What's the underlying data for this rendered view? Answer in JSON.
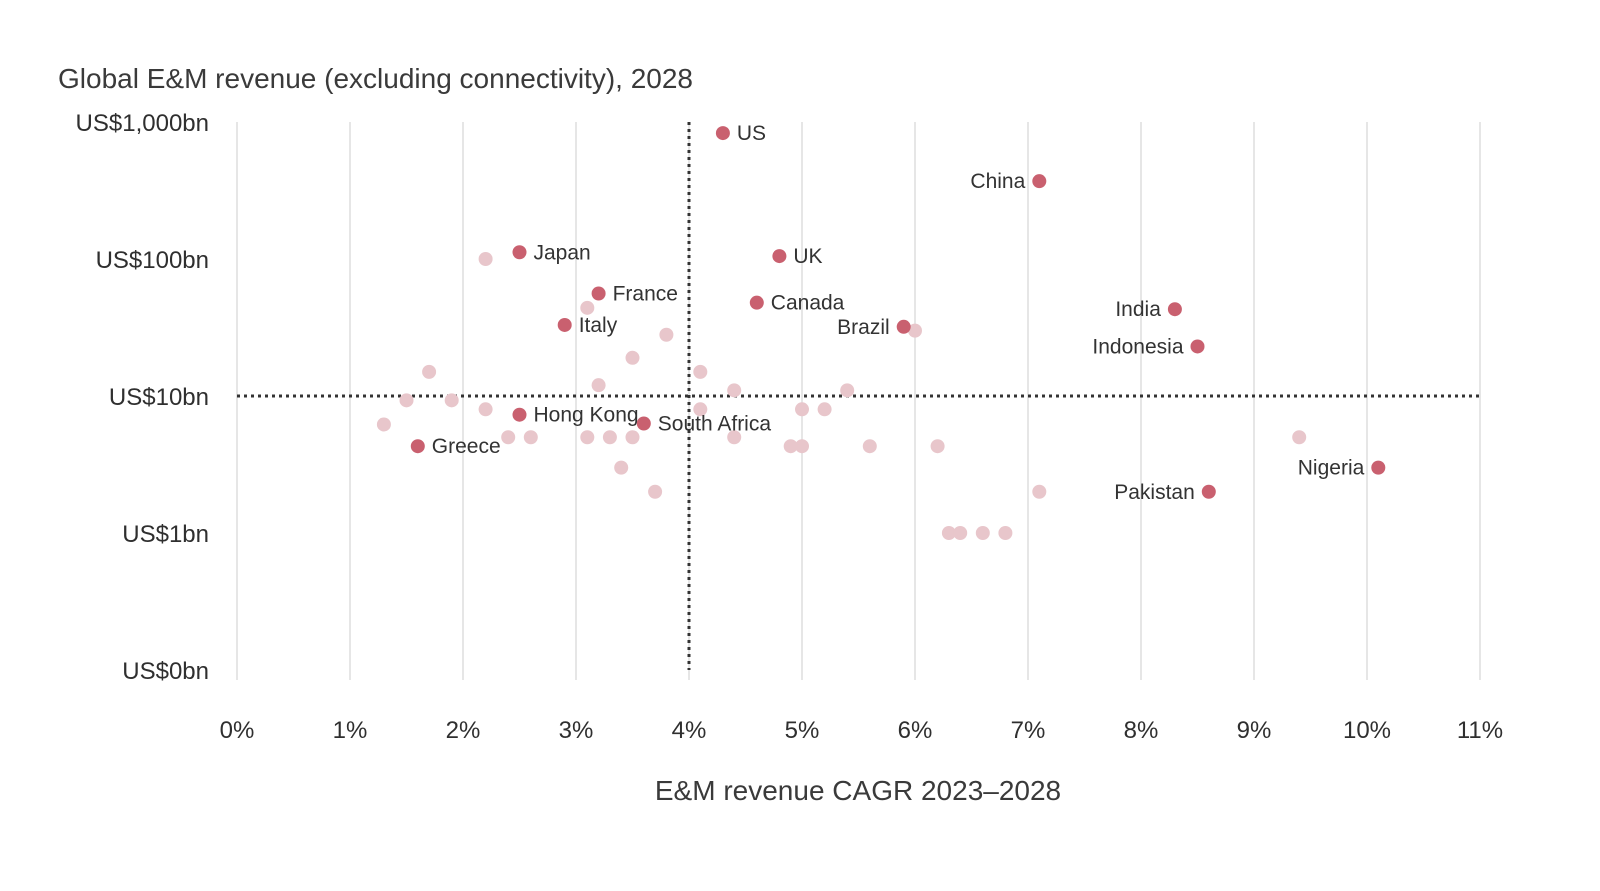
{
  "chart_data": {
    "type": "scatter",
    "title": "Global E&M revenue (excluding connectivity), 2028",
    "xlabel": "E&M revenue CAGR 2023–2028",
    "ylabel": "",
    "y_scale": "log",
    "xlim": [
      0,
      11
    ],
    "x_ticks": [
      "0%",
      "1%",
      "2%",
      "3%",
      "4%",
      "5%",
      "6%",
      "7%",
      "8%",
      "9%",
      "10%",
      "11%"
    ],
    "y_ticks": [
      "US$0bn",
      "US$1bn",
      "US$10bn",
      "US$100bn",
      "US$1,000bn"
    ],
    "grid": "vertical",
    "reference_lines": {
      "x": 4.0,
      "y": 10
    },
    "colors": {
      "highlight": "#c9606f",
      "other": "#e8c6cb",
      "grid": "#e6e6e6",
      "refline": "#333333"
    },
    "highlighted": [
      {
        "label": "US",
        "x": 4.3,
        "y": 830
      },
      {
        "label": "China",
        "x": 7.1,
        "y": 370
      },
      {
        "label": "Japan",
        "x": 2.5,
        "y": 112
      },
      {
        "label": "UK",
        "x": 4.8,
        "y": 105
      },
      {
        "label": "France",
        "x": 3.2,
        "y": 56
      },
      {
        "label": "Canada",
        "x": 4.6,
        "y": 48
      },
      {
        "label": "India",
        "x": 8.3,
        "y": 43
      },
      {
        "label": "Italy",
        "x": 2.9,
        "y": 33
      },
      {
        "label": "Brazil",
        "x": 5.9,
        "y": 32
      },
      {
        "label": "Indonesia",
        "x": 8.5,
        "y": 23
      },
      {
        "label": "Hong Kong",
        "x": 2.5,
        "y": 7.3
      },
      {
        "label": "South Africa",
        "x": 3.6,
        "y": 6.3
      },
      {
        "label": "Greece",
        "x": 1.6,
        "y": 4.3
      },
      {
        "label": "Nigeria",
        "x": 10.1,
        "y": 3.0
      },
      {
        "label": "Pakistan",
        "x": 8.6,
        "y": 2.0
      }
    ],
    "others": [
      {
        "x": 2.2,
        "y": 100
      },
      {
        "x": 3.1,
        "y": 44
      },
      {
        "x": 3.8,
        "y": 28
      },
      {
        "x": 6.0,
        "y": 30
      },
      {
        "x": 3.5,
        "y": 19
      },
      {
        "x": 1.7,
        "y": 15
      },
      {
        "x": 4.1,
        "y": 15
      },
      {
        "x": 3.2,
        "y": 12
      },
      {
        "x": 4.4,
        "y": 11
      },
      {
        "x": 5.4,
        "y": 11
      },
      {
        "x": 1.5,
        "y": 9.3
      },
      {
        "x": 1.9,
        "y": 9.3
      },
      {
        "x": 2.2,
        "y": 8.0
      },
      {
        "x": 4.1,
        "y": 8.0
      },
      {
        "x": 5.0,
        "y": 8.0
      },
      {
        "x": 5.2,
        "y": 8.0
      },
      {
        "x": 1.3,
        "y": 6.2
      },
      {
        "x": 2.4,
        "y": 5.0
      },
      {
        "x": 2.6,
        "y": 5.0
      },
      {
        "x": 3.1,
        "y": 5.0
      },
      {
        "x": 3.3,
        "y": 5.0
      },
      {
        "x": 3.5,
        "y": 5.0
      },
      {
        "x": 4.4,
        "y": 5.0
      },
      {
        "x": 9.4,
        "y": 5.0
      },
      {
        "x": 4.9,
        "y": 4.3
      },
      {
        "x": 5.0,
        "y": 4.3
      },
      {
        "x": 5.6,
        "y": 4.3
      },
      {
        "x": 6.2,
        "y": 4.3
      },
      {
        "x": 3.4,
        "y": 3.0
      },
      {
        "x": 3.7,
        "y": 2.0
      },
      {
        "x": 7.1,
        "y": 2.0
      },
      {
        "x": 6.3,
        "y": 1.0
      },
      {
        "x": 6.4,
        "y": 1.0
      },
      {
        "x": 6.6,
        "y": 1.0
      },
      {
        "x": 6.8,
        "y": 1.0
      }
    ]
  }
}
